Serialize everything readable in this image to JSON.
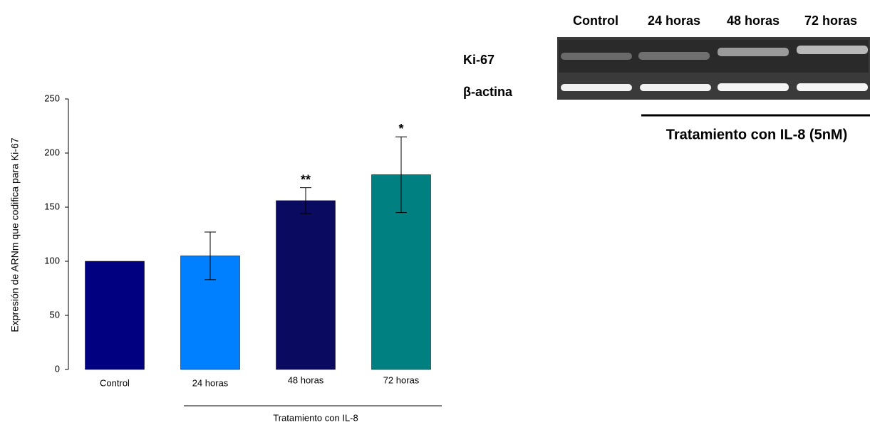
{
  "chart_data": {
    "type": "bar",
    "y_label": "Expresión de ARNm que codifica para Ki-67",
    "categories": [
      "Control",
      "24 horas",
      "48 horas",
      "72 horas"
    ],
    "values": [
      100,
      105,
      156,
      180
    ],
    "errors": [
      null,
      22,
      12,
      35
    ],
    "colors": [
      "#000080",
      "#0080ff",
      "#0a0a60",
      "#008080"
    ],
    "annotations": [
      null,
      null,
      "**",
      "*"
    ],
    "ylim": [
      0,
      250
    ],
    "yticks": [
      0,
      50,
      100,
      150,
      200,
      250
    ],
    "group_label": "Tratamiento con IL-8"
  },
  "gel": {
    "lanes": [
      "Control",
      "24 horas",
      "48 horas",
      "72 horas"
    ],
    "rows": [
      "Ki-67",
      "β-actina"
    ],
    "treatment_label": "Tratamiento con IL-8 (5nM)"
  }
}
